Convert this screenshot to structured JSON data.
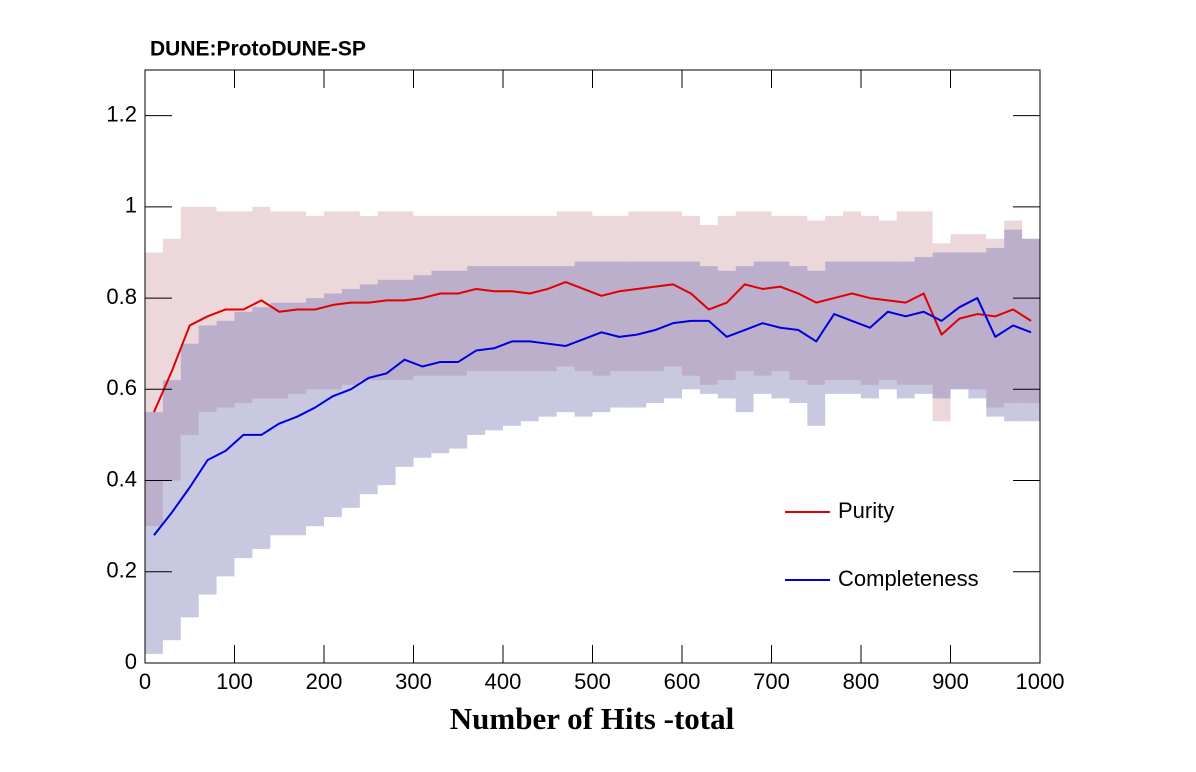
{
  "chart_data": {
    "type": "line",
    "title": "DUNE:ProtoDUNE-SP",
    "x_label": "Number of Hits -total",
    "x": [
      10,
      30,
      50,
      70,
      90,
      110,
      130,
      150,
      170,
      190,
      210,
      230,
      250,
      270,
      290,
      310,
      330,
      350,
      370,
      390,
      410,
      430,
      450,
      470,
      490,
      510,
      530,
      550,
      570,
      590,
      610,
      630,
      650,
      670,
      690,
      710,
      730,
      750,
      770,
      790,
      810,
      830,
      850,
      870,
      890,
      910,
      930,
      950,
      970,
      990
    ],
    "series": [
      {
        "name": "Purity",
        "color": "#e00000",
        "band_color": "rgba(205,150,160,0.38)",
        "values": [
          0.55,
          0.64,
          0.74,
          0.76,
          0.775,
          0.775,
          0.795,
          0.77,
          0.775,
          0.775,
          0.785,
          0.79,
          0.79,
          0.795,
          0.795,
          0.8,
          0.81,
          0.81,
          0.82,
          0.815,
          0.815,
          0.81,
          0.82,
          0.835,
          0.82,
          0.805,
          0.815,
          0.82,
          0.825,
          0.83,
          0.81,
          0.775,
          0.79,
          0.83,
          0.82,
          0.825,
          0.81,
          0.79,
          0.8,
          0.81,
          0.8,
          0.795,
          0.79,
          0.81,
          0.72,
          0.755,
          0.765,
          0.76,
          0.775,
          0.75
        ],
        "band_lower": [
          0.3,
          0.4,
          0.5,
          0.55,
          0.56,
          0.57,
          0.58,
          0.58,
          0.59,
          0.6,
          0.6,
          0.61,
          0.62,
          0.62,
          0.62,
          0.63,
          0.63,
          0.63,
          0.64,
          0.64,
          0.64,
          0.64,
          0.64,
          0.65,
          0.64,
          0.63,
          0.64,
          0.64,
          0.64,
          0.65,
          0.63,
          0.61,
          0.62,
          0.64,
          0.63,
          0.64,
          0.62,
          0.61,
          0.62,
          0.62,
          0.61,
          0.62,
          0.61,
          0.61,
          0.53,
          0.6,
          0.6,
          0.56,
          0.57,
          0.57
        ],
        "band_upper": [
          0.9,
          0.93,
          1.0,
          1.0,
          0.99,
          0.99,
          1.0,
          0.99,
          0.99,
          0.98,
          0.99,
          0.99,
          0.98,
          0.99,
          0.99,
          0.98,
          0.98,
          0.98,
          0.98,
          0.98,
          0.98,
          0.98,
          0.98,
          0.99,
          0.99,
          0.98,
          0.98,
          0.99,
          0.99,
          0.99,
          0.98,
          0.96,
          0.98,
          0.99,
          0.99,
          0.98,
          0.98,
          0.97,
          0.98,
          0.99,
          0.98,
          0.97,
          0.99,
          0.99,
          0.92,
          0.94,
          0.94,
          0.93,
          0.97,
          0.93
        ]
      },
      {
        "name": "Completeness",
        "color": "#0000dd",
        "band_color": "rgba(110,110,175,0.38)",
        "values": [
          0.28,
          0.33,
          0.385,
          0.445,
          0.465,
          0.5,
          0.5,
          0.525,
          0.54,
          0.56,
          0.585,
          0.6,
          0.625,
          0.635,
          0.665,
          0.65,
          0.66,
          0.66,
          0.685,
          0.69,
          0.705,
          0.705,
          0.7,
          0.695,
          0.71,
          0.725,
          0.715,
          0.72,
          0.73,
          0.745,
          0.75,
          0.75,
          0.715,
          0.73,
          0.745,
          0.735,
          0.73,
          0.705,
          0.765,
          0.75,
          0.735,
          0.77,
          0.76,
          0.77,
          0.75,
          0.78,
          0.8,
          0.715,
          0.74,
          0.725
        ],
        "band_lower": [
          0.02,
          0.05,
          0.1,
          0.15,
          0.19,
          0.23,
          0.25,
          0.28,
          0.28,
          0.3,
          0.32,
          0.34,
          0.37,
          0.39,
          0.43,
          0.45,
          0.46,
          0.47,
          0.5,
          0.51,
          0.52,
          0.53,
          0.54,
          0.55,
          0.54,
          0.55,
          0.56,
          0.56,
          0.57,
          0.58,
          0.6,
          0.59,
          0.58,
          0.55,
          0.59,
          0.58,
          0.57,
          0.52,
          0.59,
          0.59,
          0.58,
          0.6,
          0.58,
          0.59,
          0.58,
          0.6,
          0.58,
          0.54,
          0.53,
          0.53
        ],
        "band_upper": [
          0.55,
          0.62,
          0.7,
          0.74,
          0.75,
          0.77,
          0.78,
          0.79,
          0.79,
          0.8,
          0.81,
          0.82,
          0.83,
          0.84,
          0.84,
          0.85,
          0.86,
          0.86,
          0.87,
          0.87,
          0.87,
          0.87,
          0.87,
          0.87,
          0.88,
          0.88,
          0.88,
          0.88,
          0.88,
          0.88,
          0.88,
          0.87,
          0.86,
          0.87,
          0.88,
          0.88,
          0.87,
          0.86,
          0.88,
          0.88,
          0.88,
          0.88,
          0.88,
          0.89,
          0.9,
          0.9,
          0.9,
          0.91,
          0.95,
          0.93
        ]
      }
    ],
    "xlim": [
      0,
      1000
    ],
    "xticks": [
      0,
      100,
      200,
      300,
      400,
      500,
      600,
      700,
      800,
      900,
      1000
    ],
    "ylim": [
      0,
      1.3
    ],
    "yticks": [
      0,
      0.2,
      0.4,
      0.6,
      0.8,
      1,
      1.2
    ],
    "legend": "lower right"
  }
}
